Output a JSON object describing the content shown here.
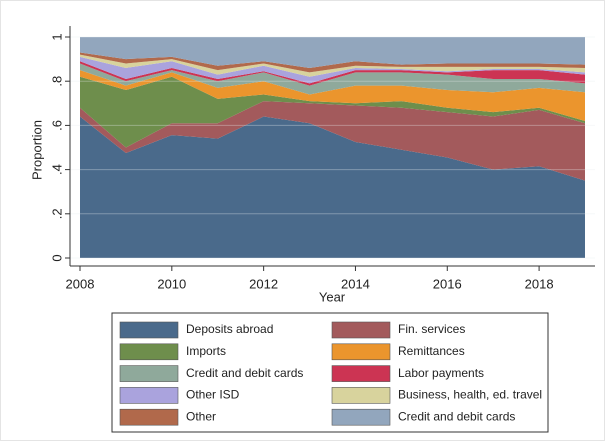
{
  "chart_data": {
    "type": "stacked-area",
    "x_label": "Year",
    "y_label": "Proportion",
    "x": [
      2008,
      2009,
      2010,
      2011,
      2012,
      2013,
      2014,
      2015,
      2016,
      2017,
      2018,
      2019
    ],
    "xlim": [
      2008,
      2019
    ],
    "xticks": [
      2008,
      2010,
      2012,
      2014,
      2016,
      2018
    ],
    "ylim": [
      0,
      1
    ],
    "yticks": [
      0,
      {
        "value": 0.2,
        "label": ".2"
      },
      {
        "value": 0.4,
        "label": ".4"
      },
      {
        "value": 0.6,
        "label": ".6"
      },
      {
        "value": 0.8,
        "label": ".8"
      },
      1
    ],
    "grid": true,
    "series": [
      {
        "name": "Deposits abroad",
        "color": "#4a6a8b",
        "values": [
          0.64,
          0.475,
          0.556,
          0.54,
          0.64,
          0.61,
          0.525,
          0.49,
          0.455,
          0.4,
          0.415,
          0.35
        ]
      },
      {
        "name": "Fin. services",
        "color": "#a35a5c",
        "values": [
          0.04,
          0.025,
          0.054,
          0.07,
          0.07,
          0.09,
          0.165,
          0.19,
          0.205,
          0.24,
          0.255,
          0.26
        ]
      },
      {
        "name": "Imports",
        "color": "#6e8e4c",
        "values": [
          0.14,
          0.26,
          0.21,
          0.11,
          0.03,
          0.01,
          0.01,
          0.03,
          0.02,
          0.02,
          0.01,
          0.01
        ]
      },
      {
        "name": "Remittances",
        "color": "#eb952d",
        "values": [
          0.03,
          0.02,
          0.02,
          0.05,
          0.06,
          0.03,
          0.08,
          0.07,
          0.08,
          0.09,
          0.09,
          0.13
        ]
      },
      {
        "name": "Credit and debit cards",
        "color": "#8fa99b",
        "values": [
          0.03,
          0.02,
          0.01,
          0.03,
          0.04,
          0.04,
          0.06,
          0.06,
          0.07,
          0.06,
          0.04,
          0.04
        ]
      },
      {
        "name": "Labor payments",
        "color": "#cc3453",
        "values": [
          0.01,
          0.01,
          0.01,
          0.01,
          0.005,
          0.01,
          0.01,
          0.01,
          0.01,
          0.04,
          0.04,
          0.04
        ]
      },
      {
        "name": "Other ISD",
        "color": "#aaa3dd",
        "values": [
          0.02,
          0.05,
          0.03,
          0.02,
          0.025,
          0.03,
          0.01,
          0.005,
          0.005,
          0.005,
          0.005,
          0.01
        ]
      },
      {
        "name": "Business, health, ed. travel",
        "color": "#d8d39d",
        "values": [
          0.01,
          0.02,
          0.01,
          0.02,
          0.01,
          0.02,
          0.01,
          0.01,
          0.02,
          0.01,
          0.01,
          0.02
        ]
      },
      {
        "name": "Other",
        "color": "#b1694b",
        "values": [
          0.01,
          0.02,
          0.01,
          0.02,
          0.01,
          0.02,
          0.02,
          0.01,
          0.015,
          0.015,
          0.015,
          0.015
        ]
      },
      {
        "name": "Credit and debit cards",
        "color": "#92a6bd",
        "values": [
          0.07,
          0.1,
          0.09,
          0.13,
          0.11,
          0.14,
          0.11,
          0.125,
          0.12,
          0.12,
          0.12,
          0.125
        ]
      }
    ]
  }
}
